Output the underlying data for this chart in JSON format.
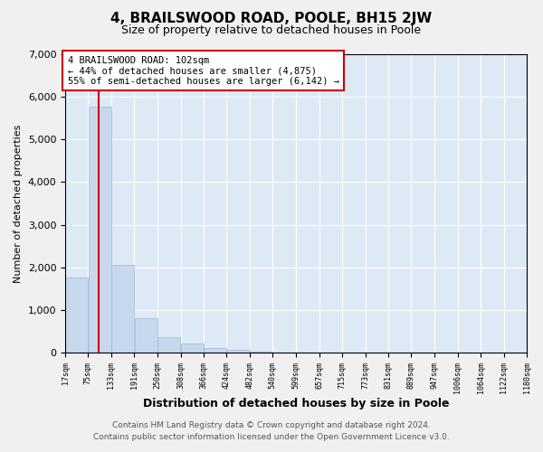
{
  "title": "4, BRAILSWOOD ROAD, POOLE, BH15 2JW",
  "subtitle": "Size of property relative to detached houses in Poole",
  "xlabel": "Distribution of detached houses by size in Poole",
  "ylabel": "Number of detached properties",
  "bar_color": "#c8d8ec",
  "bar_edge_color": "#9ab8d8",
  "grid_color": "#ffffff",
  "bg_color": "#ddeaf5",
  "fig_bg_color": "#f0f0f0",
  "vline_color": "#cc0000",
  "vline_x": 102,
  "annotation_box_color": "#cc0000",
  "annotation_line1": "4 BRAILSWOOD ROAD: 102sqm",
  "annotation_line2": "← 44% of detached houses are smaller (4,875)",
  "annotation_line3": "55% of semi-detached houses are larger (6,142) →",
  "bin_edges": [
    17,
    75,
    133,
    191,
    250,
    308,
    366,
    424,
    482,
    540,
    599,
    657,
    715,
    773,
    831,
    889,
    947,
    1006,
    1064,
    1122,
    1180
  ],
  "bin_labels": [
    "17sqm",
    "75sqm",
    "133sqm",
    "191sqm",
    "250sqm",
    "308sqm",
    "366sqm",
    "424sqm",
    "482sqm",
    "540sqm",
    "599sqm",
    "657sqm",
    "715sqm",
    "773sqm",
    "831sqm",
    "889sqm",
    "947sqm",
    "1006sqm",
    "1064sqm",
    "1122sqm",
    "1180sqm"
  ],
  "counts": [
    1770,
    5780,
    2060,
    800,
    355,
    220,
    105,
    55,
    30,
    0,
    0,
    0,
    0,
    0,
    0,
    0,
    0,
    0,
    0,
    0
  ],
  "ylim": [
    0,
    7000
  ],
  "yticks": [
    0,
    1000,
    2000,
    3000,
    4000,
    5000,
    6000,
    7000
  ],
  "footer1": "Contains HM Land Registry data © Crown copyright and database right 2024.",
  "footer2": "Contains public sector information licensed under the Open Government Licence v3.0."
}
